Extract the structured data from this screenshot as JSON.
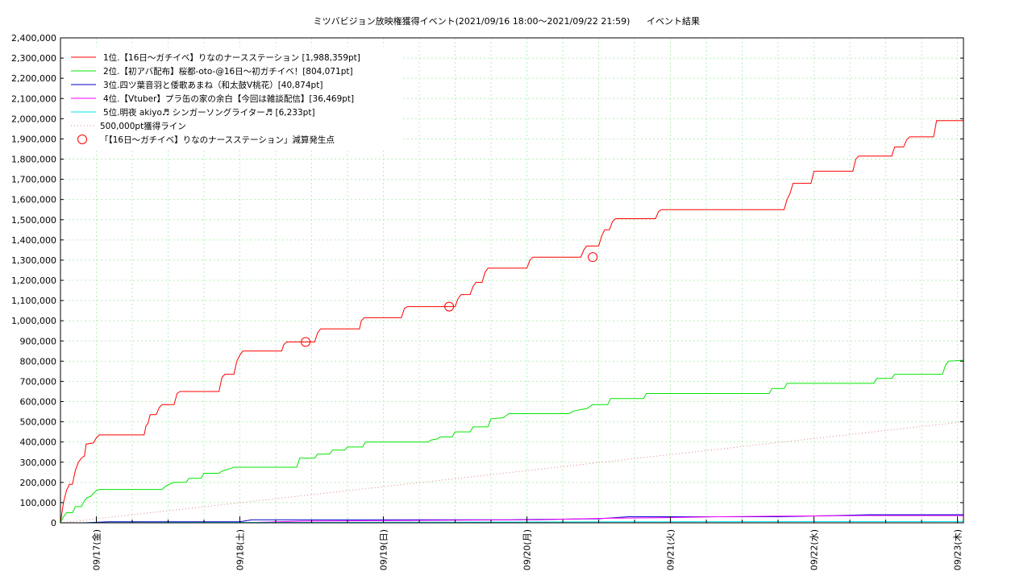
{
  "chart_data": {
    "type": "line",
    "title": "ミツバビジョン放映権獲得イベント(2021/09/16 18:00～2021/09/22 21:59)",
    "subtitle": "イベント結果",
    "xlabel": "",
    "ylabel": "",
    "ylim": [
      0,
      2400000
    ],
    "xlim": [
      "2021-09-16 18:00",
      "2021-09-22 21:59"
    ],
    "grid": true,
    "legend_position": "top-left",
    "y_ticks": [
      "0",
      "100,000",
      "200,000",
      "300,000",
      "400,000",
      "500,000",
      "600,000",
      "700,000",
      "800,000",
      "900,000",
      "1,000,000",
      "1,100,000",
      "1,200,000",
      "1,300,000",
      "1,400,000",
      "1,500,000",
      "1,600,000",
      "1,700,000",
      "1,800,000",
      "1,900,000",
      "2,000,000",
      "2,100,000",
      "2,200,000",
      "2,300,000",
      "2,400,000"
    ],
    "x_ticks": [
      {
        "label": "09/17(金)",
        "t": 6
      },
      {
        "label": "09/18(土)",
        "t": 30
      },
      {
        "label": "09/19(日)",
        "t": 54
      },
      {
        "label": "09/20(月)",
        "t": 78
      },
      {
        "label": "09/21(火)",
        "t": 102
      },
      {
        "label": "09/22(水)",
        "t": 126
      },
      {
        "label": "09/23(木)",
        "t": 150
      }
    ],
    "series": [
      {
        "name": "1位.【16日～ガチイベ】りなのナースステーション [1,988,359pt]",
        "color": "#ff0000",
        "style": "solid",
        "points": [
          [
            0,
            0
          ],
          [
            0.5,
            100000
          ],
          [
            1,
            160000
          ],
          [
            1.5,
            190000
          ],
          [
            2,
            190000
          ],
          [
            2.5,
            260000
          ],
          [
            3,
            300000
          ],
          [
            3.5,
            320000
          ],
          [
            4,
            330000
          ],
          [
            4.3,
            390000
          ],
          [
            5.5,
            395000
          ],
          [
            6,
            420000
          ],
          [
            6.5,
            435000
          ],
          [
            14,
            435000
          ],
          [
            14.3,
            480000
          ],
          [
            14.6,
            490000
          ],
          [
            15,
            535000
          ],
          [
            16,
            535000
          ],
          [
            16.5,
            570000
          ],
          [
            17,
            585000
          ],
          [
            19,
            585000
          ],
          [
            19.5,
            640000
          ],
          [
            20,
            650000
          ],
          [
            26.5,
            650000
          ],
          [
            27,
            720000
          ],
          [
            27.5,
            735000
          ],
          [
            29,
            735000
          ],
          [
            29.5,
            800000
          ],
          [
            30,
            830000
          ],
          [
            30.5,
            850000
          ],
          [
            37,
            850000
          ],
          [
            37.3,
            880000
          ],
          [
            37.8,
            895000
          ],
          [
            42.5,
            895000
          ],
          [
            43,
            940000
          ],
          [
            43.5,
            960000
          ],
          [
            50,
            960000
          ],
          [
            50.3,
            1000000
          ],
          [
            50.8,
            1015000
          ],
          [
            57,
            1015000
          ],
          [
            57.5,
            1060000
          ],
          [
            58,
            1070000
          ],
          [
            66,
            1070000
          ],
          [
            66.5,
            1110000
          ],
          [
            67,
            1130000
          ],
          [
            68.5,
            1130000
          ],
          [
            69,
            1170000
          ],
          [
            69.5,
            1190000
          ],
          [
            70.5,
            1190000
          ],
          [
            71,
            1240000
          ],
          [
            71.5,
            1260000
          ],
          [
            78,
            1260000
          ],
          [
            78.5,
            1300000
          ],
          [
            79,
            1315000
          ],
          [
            87,
            1315000
          ],
          [
            87.5,
            1350000
          ],
          [
            88,
            1370000
          ],
          [
            90,
            1370000
          ],
          [
            90.5,
            1420000
          ],
          [
            91,
            1450000
          ],
          [
            91.8,
            1450000
          ],
          [
            92.3,
            1490000
          ],
          [
            92.8,
            1505000
          ],
          [
            99.5,
            1505000
          ],
          [
            100,
            1540000
          ],
          [
            100.5,
            1550000
          ],
          [
            121,
            1550000
          ],
          [
            121.5,
            1600000
          ],
          [
            122,
            1630000
          ],
          [
            122.5,
            1680000
          ],
          [
            125.5,
            1680000
          ],
          [
            126,
            1740000
          ],
          [
            132.5,
            1740000
          ],
          [
            133,
            1800000
          ],
          [
            133.5,
            1815000
          ],
          [
            139,
            1815000
          ],
          [
            139.5,
            1860000
          ],
          [
            141,
            1860000
          ],
          [
            141.5,
            1895000
          ],
          [
            142,
            1910000
          ],
          [
            146,
            1910000
          ],
          [
            146.2,
            1940000
          ],
          [
            146.5,
            1990000
          ],
          [
            151,
            1990000
          ]
        ]
      },
      {
        "name": "2位.【初アバ配布】桜都-oto-@16日～初ガチイベ！[804,071pt]",
        "color": "#00e600",
        "style": "solid",
        "points": [
          [
            0,
            0
          ],
          [
            0.5,
            30000
          ],
          [
            1,
            50000
          ],
          [
            2,
            50000
          ],
          [
            2.5,
            80000
          ],
          [
            3.5,
            80000
          ],
          [
            4,
            110000
          ],
          [
            4.5,
            125000
          ],
          [
            5,
            130000
          ],
          [
            5.5,
            145000
          ],
          [
            6,
            160000
          ],
          [
            6.5,
            165000
          ],
          [
            17,
            165000
          ],
          [
            17.5,
            180000
          ],
          [
            18.5,
            195000
          ],
          [
            19,
            200000
          ],
          [
            21,
            200000
          ],
          [
            21.5,
            220000
          ],
          [
            23.5,
            220000
          ],
          [
            24,
            245000
          ],
          [
            26.5,
            245000
          ],
          [
            27,
            255000
          ],
          [
            28.5,
            270000
          ],
          [
            29,
            275000
          ],
          [
            39.5,
            275000
          ],
          [
            40,
            320000
          ],
          [
            42.5,
            320000
          ],
          [
            43,
            340000
          ],
          [
            45,
            340000
          ],
          [
            45.5,
            360000
          ],
          [
            47.5,
            360000
          ],
          [
            48,
            375000
          ],
          [
            50.5,
            375000
          ],
          [
            51,
            400000
          ],
          [
            61.5,
            400000
          ],
          [
            62,
            410000
          ],
          [
            63,
            415000
          ],
          [
            63.5,
            425000
          ],
          [
            65.5,
            425000
          ],
          [
            66,
            450000
          ],
          [
            68.5,
            450000
          ],
          [
            69,
            475000
          ],
          [
            71.5,
            475000
          ],
          [
            72,
            515000
          ],
          [
            74,
            520000
          ],
          [
            75,
            540000
          ],
          [
            85,
            540000
          ],
          [
            86,
            555000
          ],
          [
            88,
            565000
          ],
          [
            89,
            585000
          ],
          [
            91.5,
            585000
          ],
          [
            92,
            615000
          ],
          [
            97.5,
            615000
          ],
          [
            98,
            640000
          ],
          [
            118.5,
            640000
          ],
          [
            119,
            665000
          ],
          [
            121,
            665000
          ],
          [
            121.5,
            690000
          ],
          [
            136,
            690000
          ],
          [
            136.5,
            715000
          ],
          [
            139,
            715000
          ],
          [
            139.5,
            735000
          ],
          [
            147.5,
            735000
          ],
          [
            148,
            780000
          ],
          [
            148.5,
            800000
          ],
          [
            151,
            805000
          ]
        ]
      },
      {
        "name": "3位.四ツ葉音羽と倭歌あまね（和太鼓V桃花）[40,874pt]",
        "color": "#0000cc",
        "style": "solid",
        "points": [
          [
            0,
            0
          ],
          [
            4,
            0
          ],
          [
            8,
            5000
          ],
          [
            30,
            5000
          ],
          [
            32,
            15000
          ],
          [
            60,
            15000
          ],
          [
            75,
            15000
          ],
          [
            90,
            20000
          ],
          [
            95,
            30000
          ],
          [
            110,
            30000
          ],
          [
            120,
            30000
          ],
          [
            128,
            35000
          ],
          [
            135,
            40000
          ],
          [
            151,
            40000
          ]
        ]
      },
      {
        "name": "4位.【Vtuber】プラ缶の家の余白【今回は雑談配信】[36,469pt]",
        "color": "#ff00ff",
        "style": "solid",
        "points": [
          [
            0,
            0
          ],
          [
            30,
            0
          ],
          [
            40,
            8000
          ],
          [
            60,
            12000
          ],
          [
            80,
            15000
          ],
          [
            90,
            22000
          ],
          [
            100,
            25000
          ],
          [
            110,
            30000
          ],
          [
            120,
            33000
          ],
          [
            135,
            36000
          ],
          [
            151,
            36000
          ]
        ]
      },
      {
        "name": "5位.明夜 akiyo♬ シンガーソングライター♬ [6,233pt]",
        "color": "#00e6e6",
        "style": "solid",
        "points": [
          [
            0,
            0
          ],
          [
            60,
            3000
          ],
          [
            100,
            5000
          ],
          [
            151,
            6200
          ]
        ]
      },
      {
        "name": "500,000pt獲得ライン",
        "color": "#e08080",
        "style": "dotted",
        "points": [
          [
            0,
            0
          ],
          [
            151,
            500000
          ]
        ]
      }
    ],
    "markers": {
      "name": "「【16日～ガチイベ】りなのナースステーション」減算発生点",
      "color": "#ff0000",
      "points": [
        [
          41,
          895000
        ],
        [
          65,
          1070000
        ],
        [
          89,
          1315000
        ]
      ]
    }
  }
}
